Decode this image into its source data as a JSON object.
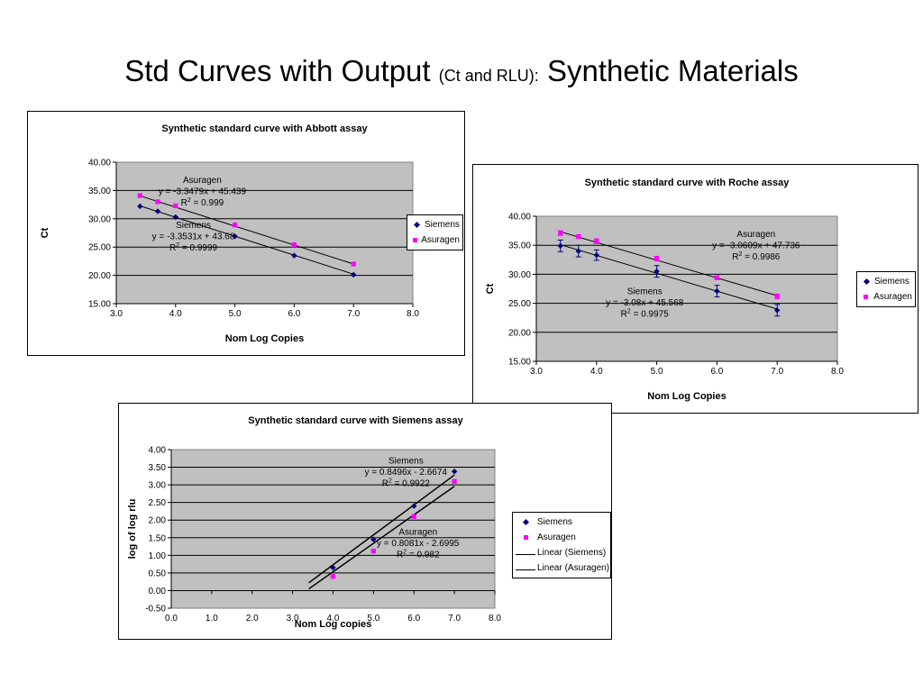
{
  "slide": {
    "title_main": "Std Curves with Output",
    "title_small": "(Ct and RLU):",
    "title_end": "Synthetic Materials"
  },
  "colors": {
    "siemens": "#000080",
    "asuragen": "#ff00ff",
    "plot_bg": "#c0c0c0"
  },
  "chart_data": [
    {
      "type": "scatter",
      "title": "Synthetic standard curve with Abbott assay",
      "xlabel": "Nom Log Copies",
      "ylabel": "Ct",
      "xlim": [
        3.0,
        8.0
      ],
      "ylim": [
        15.0,
        40.0
      ],
      "x_ticks": [
        "3.0",
        "4.0",
        "5.0",
        "6.0",
        "7.0",
        "8.0"
      ],
      "y_ticks": [
        "15.00",
        "20.00",
        "25.00",
        "30.00",
        "35.00",
        "40.00"
      ],
      "grid": "horizontal",
      "legend": {
        "placement": "right",
        "entries": [
          "Siemens",
          "Asuragen"
        ]
      },
      "series": [
        {
          "name": "Siemens",
          "x": [
            3.4,
            3.7,
            4.0,
            5.0,
            6.0,
            7.0
          ],
          "y": [
            32.2,
            31.3,
            30.3,
            26.9,
            23.5,
            20.1
          ],
          "trendline": {
            "slope": -3.3531,
            "intercept": 43.68
          }
        },
        {
          "name": "Asuragen",
          "x": [
            3.4,
            3.7,
            4.0,
            5.0,
            6.0,
            7.0
          ],
          "y": [
            34.1,
            33.0,
            32.3,
            28.9,
            25.4,
            22.0
          ],
          "trendline": {
            "slope": -3.3479,
            "intercept": 45.439
          }
        }
      ],
      "annotations": [
        {
          "lines": [
            "Asuragen",
            "y = -3.3479x + 45.439",
            "R2 = 0.999"
          ],
          "anchor_x": 4.45,
          "anchor_y": 36.3
        },
        {
          "lines": [
            "Siemens",
            "y = -3.3531x + 43.68",
            "R2 = 0.9999"
          ],
          "anchor_x": 4.3,
          "anchor_y": 28.4
        }
      ]
    },
    {
      "type": "scatter",
      "title": "Synthetic standard curve with Roche assay",
      "xlabel": "Nom Log Copies",
      "ylabel": "Ct",
      "xlim": [
        3.0,
        8.0
      ],
      "ylim": [
        15.0,
        40.0
      ],
      "x_ticks": [
        "3.0",
        "4.0",
        "5.0",
        "6.0",
        "7.0",
        "8.0"
      ],
      "y_ticks": [
        "15.00",
        "20.00",
        "25.00",
        "30.00",
        "35.00",
        "40.00"
      ],
      "grid": "horizontal",
      "legend": {
        "placement": "right",
        "entries": [
          "Siemens",
          "Asuragen"
        ]
      },
      "series": [
        {
          "name": "Siemens",
          "x": [
            3.4,
            3.7,
            4.0,
            5.0,
            6.0,
            7.0
          ],
          "y": [
            34.9,
            34.0,
            33.3,
            30.5,
            27.1,
            23.8
          ],
          "err": [
            1.0,
            1.0,
            0.9,
            1.0,
            1.0,
            1.0
          ],
          "trendline": {
            "slope": -3.08,
            "intercept": 45.568
          }
        },
        {
          "name": "Asuragen",
          "x": [
            3.4,
            3.7,
            4.0,
            5.0,
            6.0,
            7.0
          ],
          "y": [
            37.1,
            36.5,
            35.7,
            32.7,
            29.4,
            26.2
          ],
          "err": [
            0.4,
            0.3,
            0.4,
            0.4,
            0.3,
            0.4
          ],
          "trendline": {
            "slope": -3.0609,
            "intercept": 47.736
          }
        }
      ],
      "annotations": [
        {
          "lines": [
            "Asuragen",
            "y = -3.0609x + 47.736",
            "R2 = 0.9986"
          ],
          "anchor_x": 6.65,
          "anchor_y": 36.4
        },
        {
          "lines": [
            "Siemens",
            "y = -3.08x + 45.568",
            "R2 = 0.9975"
          ],
          "anchor_x": 4.8,
          "anchor_y": 26.6
        }
      ]
    },
    {
      "type": "scatter",
      "title": "Synthetic standard curve with Siemens assay",
      "xlabel": "Nom Log copies",
      "ylabel": "log of log rlu",
      "xlim": [
        0.0,
        8.0
      ],
      "ylim": [
        -0.5,
        4.0
      ],
      "x_ticks": [
        "0.0",
        "1.0",
        "2.0",
        "3.0",
        "4.0",
        "5.0",
        "6.0",
        "7.0",
        "8.0"
      ],
      "y_ticks": [
        "-0.50",
        "0.00",
        "0.50",
        "1.00",
        "1.50",
        "2.00",
        "2.50",
        "3.00",
        "3.50",
        "4.00"
      ],
      "grid": "horizontal",
      "legend": {
        "placement": "right",
        "entries": [
          "Siemens",
          "Asuragen",
          "Linear (Siemens)",
          "Linear (Asuragen)"
        ]
      },
      "series": [
        {
          "name": "Siemens",
          "x": [
            4.0,
            5.0,
            6.0,
            7.0
          ],
          "y": [
            0.65,
            1.45,
            2.4,
            3.38
          ],
          "trendline": {
            "slope": 0.8496,
            "intercept": -2.6674,
            "from": 3.4,
            "to": 7.0
          }
        },
        {
          "name": "Asuragen",
          "x": [
            4.0,
            5.0,
            6.0,
            7.0
          ],
          "y": [
            0.4,
            1.12,
            2.1,
            3.1
          ],
          "trendline": {
            "slope": 0.8081,
            "intercept": -2.6995,
            "from": 3.4,
            "to": 7.0
          }
        }
      ],
      "annotations": [
        {
          "lines": [
            "Siemens",
            "y = 0.8496x - 2.6674",
            "R2 = 0.9922"
          ],
          "anchor_x": 5.8,
          "anchor_y": 3.6
        },
        {
          "lines": [
            "Asuragen",
            "y = 0.8081x - 2.6995",
            "R2 = 0.982"
          ],
          "anchor_x": 6.1,
          "anchor_y": 1.58
        }
      ]
    }
  ]
}
